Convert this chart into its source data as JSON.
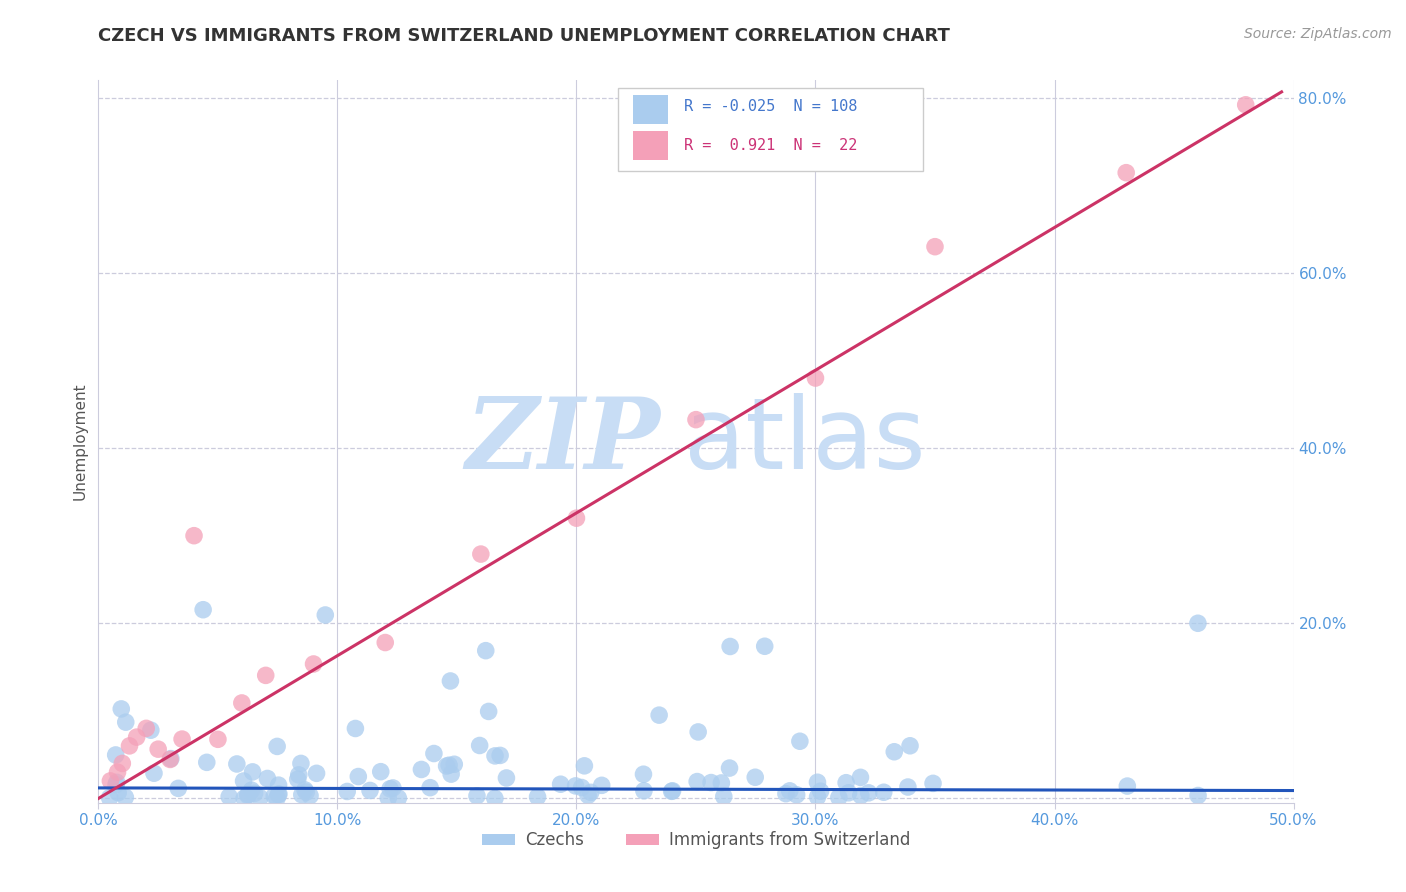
{
  "title": "CZECH VS IMMIGRANTS FROM SWITZERLAND UNEMPLOYMENT CORRELATION CHART",
  "source": "Source: ZipAtlas.com",
  "ylabel": "Unemployment",
  "xlim": [
    0.0,
    0.5
  ],
  "ylim": [
    -0.005,
    0.82
  ],
  "xticks": [
    0.0,
    0.1,
    0.2,
    0.3,
    0.4,
    0.5
  ],
  "yticks": [
    0.0,
    0.2,
    0.4,
    0.6,
    0.8
  ],
  "xticklabels": [
    "0.0%",
    "10.0%",
    "20.0%",
    "30.0%",
    "40.0%",
    "50.0%"
  ],
  "yticklabels": [
    "",
    "20.0%",
    "40.0%",
    "60.0%",
    "80.0%"
  ],
  "czech_color": "#aaccee",
  "swiss_color": "#f4a0b8",
  "czech_line_color": "#2255bb",
  "swiss_line_color": "#cc3366",
  "czech_R": -0.025,
  "czech_N": 108,
  "swiss_R": 0.921,
  "swiss_N": 22,
  "legend_label_czech": "Czechs",
  "legend_label_swiss": "Immigrants from Switzerland",
  "watermark_zip": "ZIP",
  "watermark_atlas": "atlas",
  "watermark_color": "#c8ddf5",
  "title_color": "#333333",
  "tick_color": "#5599dd",
  "grid_color": "#ccccdd",
  "source_color": "#999999"
}
